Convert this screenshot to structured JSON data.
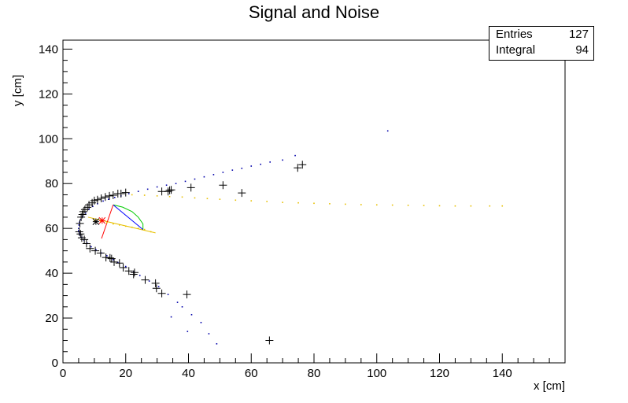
{
  "chart_data": {
    "type": "scatter",
    "title": "Signal and Noise",
    "xlabel": "x [cm]",
    "ylabel": "y [cm]",
    "xlim": [
      0,
      160
    ],
    "ylim": [
      0,
      144
    ],
    "xticks": [
      0,
      20,
      40,
      60,
      80,
      100,
      120,
      140
    ],
    "yticks": [
      0,
      20,
      40,
      60,
      80,
      100,
      120,
      140
    ],
    "grid": false,
    "stats_box": {
      "entries_label": "Entries",
      "entries_value": "127",
      "integral_label": "Integral",
      "integral_value": "94",
      "placement": "top-right"
    },
    "colors": {
      "markers": "#000000",
      "hits": "#0000aa",
      "yellow_track": "#e8c000",
      "green_arc": "#00cc00",
      "red_line": "#ff0000",
      "blue_line": "#0000ff"
    },
    "markers_plus": [
      [
        5.2,
        58.5
      ],
      [
        5.4,
        62.2
      ],
      [
        5.6,
        57.5
      ],
      [
        5.8,
        65.0
      ],
      [
        6.0,
        55.8
      ],
      [
        6.2,
        66.2
      ],
      [
        6.5,
        67.5
      ],
      [
        6.8,
        55.0
      ],
      [
        7.0,
        68.4
      ],
      [
        7.5,
        53.2
      ],
      [
        7.8,
        69.4
      ],
      [
        8.3,
        70.5
      ],
      [
        8.6,
        51.0
      ],
      [
        9.3,
        71.4
      ],
      [
        10.0,
        72.4
      ],
      [
        10.3,
        50.0
      ],
      [
        11.0,
        72.8
      ],
      [
        12.0,
        49.0
      ],
      [
        12.2,
        73.4
      ],
      [
        13.5,
        74.0
      ],
      [
        13.7,
        47.0
      ],
      [
        14.8,
        74.5
      ],
      [
        15.0,
        46.8
      ],
      [
        15.5,
        46.5
      ],
      [
        16.0,
        74.8
      ],
      [
        16.3,
        45.0
      ],
      [
        17.5,
        75.5
      ],
      [
        18.0,
        44.5
      ],
      [
        18.5,
        75.5
      ],
      [
        19.2,
        42.5
      ],
      [
        20.0,
        76.0
      ],
      [
        21.0,
        41.0
      ],
      [
        22.5,
        39.5
      ],
      [
        22.8,
        40.3
      ],
      [
        26.2,
        37.0
      ],
      [
        29.5,
        35.5
      ],
      [
        29.8,
        33.3
      ],
      [
        31.5,
        31.0
      ],
      [
        39.5,
        30.5
      ],
      [
        31.5,
        76.5
      ],
      [
        33.5,
        76.5
      ],
      [
        34.0,
        77.0
      ],
      [
        34.5,
        77.2
      ],
      [
        40.8,
        78.2
      ],
      [
        51.0,
        79.3
      ],
      [
        57.0,
        75.8
      ],
      [
        74.8,
        87.0
      ],
      [
        76.3,
        88.4
      ],
      [
        65.8,
        10.0
      ]
    ],
    "markers_star": [
      [
        12.5,
        63.5
      ],
      [
        10.5,
        63.0
      ]
    ],
    "hits_main": [
      [
        5.0,
        60.0
      ],
      [
        5.0,
        59.0
      ],
      [
        5.1,
        61.5
      ],
      [
        5.2,
        58.0
      ],
      [
        5.3,
        62.8
      ],
      [
        5.5,
        57.0
      ],
      [
        5.7,
        64.0
      ],
      [
        6.0,
        56.0
      ],
      [
        6.3,
        65.3
      ],
      [
        6.7,
        54.8
      ],
      [
        7.2,
        66.8
      ],
      [
        7.8,
        53.3
      ],
      [
        8.3,
        68.5
      ],
      [
        9.0,
        51.8
      ],
      [
        9.5,
        69.8
      ],
      [
        10.5,
        50.5
      ],
      [
        11.0,
        71.0
      ],
      [
        12.3,
        49.0
      ],
      [
        12.8,
        72.2
      ],
      [
        14.0,
        47.8
      ],
      [
        14.5,
        73.0
      ],
      [
        16.0,
        46.0
      ],
      [
        16.5,
        73.8
      ],
      [
        17.5,
        44.8
      ],
      [
        18.5,
        74.5
      ],
      [
        20.0,
        43.0
      ],
      [
        21.0,
        75.5
      ],
      [
        22.5,
        40.5
      ],
      [
        24.0,
        76.5
      ],
      [
        24.5,
        39.0
      ],
      [
        27.0,
        77.5
      ],
      [
        27.5,
        36.5
      ],
      [
        30.0,
        78.5
      ],
      [
        30.5,
        34.0
      ],
      [
        33.0,
        79.3
      ],
      [
        33.5,
        30.5
      ],
      [
        36.0,
        80.0
      ],
      [
        36.5,
        27.0
      ],
      [
        39.0,
        81.0
      ],
      [
        38.0,
        25.0
      ],
      [
        42.0,
        82.0
      ],
      [
        41.0,
        21.5
      ],
      [
        45.0,
        83.0
      ],
      [
        44.0,
        18.0
      ],
      [
        48.0,
        84.0
      ],
      [
        46.5,
        13.0
      ],
      [
        51.0,
        85.0
      ],
      [
        49.0,
        8.5
      ],
      [
        54.0,
        86.0
      ],
      [
        57.0,
        86.8
      ],
      [
        60.0,
        87.8
      ],
      [
        63.0,
        88.6
      ],
      [
        66.0,
        89.6
      ],
      [
        70.0,
        90.5
      ],
      [
        74.0,
        92.5
      ],
      [
        103.5,
        103.5
      ],
      [
        34.5,
        20.5
      ],
      [
        39.7,
        14.0
      ]
    ],
    "hits_yellow": [
      [
        10,
        63.5
      ],
      [
        12,
        63.0
      ],
      [
        14,
        62.5
      ],
      [
        16,
        62.0
      ],
      [
        18,
        61.5
      ],
      [
        20,
        61.0
      ],
      [
        22,
        60.5
      ],
      [
        24,
        60.0
      ],
      [
        26,
        59.5
      ],
      [
        28,
        58.5
      ],
      [
        22,
        75.0
      ],
      [
        26,
        74.8
      ],
      [
        30,
        74.5
      ],
      [
        34,
        74.2
      ],
      [
        38,
        74.0
      ],
      [
        42,
        73.6
      ],
      [
        46,
        73.3
      ],
      [
        50,
        73.0
      ],
      [
        55,
        72.6
      ],
      [
        60,
        72.3
      ],
      [
        65,
        72.0
      ],
      [
        70,
        71.6
      ],
      [
        75,
        71.4
      ],
      [
        80,
        71.2
      ],
      [
        85,
        71.0
      ],
      [
        90,
        70.8
      ],
      [
        95,
        70.6
      ],
      [
        100,
        70.5
      ],
      [
        105,
        70.4
      ],
      [
        110,
        70.3
      ],
      [
        115,
        70.2
      ],
      [
        120,
        70.1
      ],
      [
        125,
        70.0
      ],
      [
        130,
        70.0
      ],
      [
        136,
        70.0
      ],
      [
        140,
        70.0
      ]
    ],
    "green_arc": [
      [
        16.0,
        70.5
      ],
      [
        19.0,
        69.5
      ],
      [
        22.0,
        67.5
      ],
      [
        24.0,
        65.0
      ],
      [
        25.5,
        62.0
      ],
      [
        25.5,
        59.5
      ]
    ],
    "blue_line": [
      [
        16.0,
        70.5
      ],
      [
        25.5,
        59.5
      ]
    ],
    "red_line": [
      [
        16.0,
        70.5
      ],
      [
        12.3,
        55.5
      ]
    ],
    "yellow_line": [
      [
        8.0,
        65.0
      ],
      [
        29.5,
        58.0
      ]
    ]
  }
}
